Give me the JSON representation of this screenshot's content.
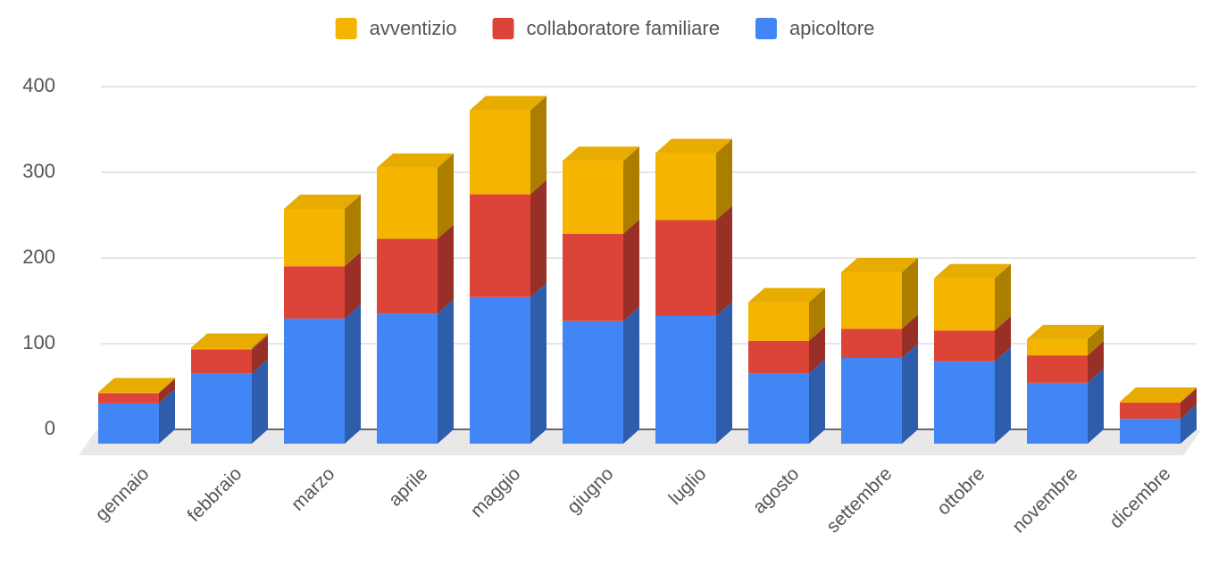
{
  "chart_data": {
    "type": "bar3d_stacked",
    "categories": [
      "gennaio",
      "febbraio",
      "marzo",
      "aprile",
      "maggio",
      "giugno",
      "luglio",
      "agosto",
      "settembre",
      "ottobre",
      "novembre",
      "dicembre"
    ],
    "series": [
      {
        "name": "apicoltore",
        "color": "#4285f4",
        "values": [
          47,
          82,
          146,
          152,
          171,
          143,
          149,
          82,
          100,
          96,
          71,
          29
        ]
      },
      {
        "name": "collaboratore familiare",
        "color": "#db4437",
        "values": [
          12,
          28,
          61,
          87,
          120,
          102,
          112,
          38,
          34,
          36,
          32,
          19
        ]
      },
      {
        "name": "avventizio",
        "color": "#f4b400",
        "values": [
          1,
          2,
          67,
          83,
          98,
          85,
          78,
          45,
          66,
          61,
          19,
          1
        ]
      }
    ],
    "ylim": [
      0,
      400
    ],
    "yticks": [
      0,
      100,
      200,
      300,
      400
    ],
    "grid": true,
    "stacked": true,
    "legend": "top"
  }
}
